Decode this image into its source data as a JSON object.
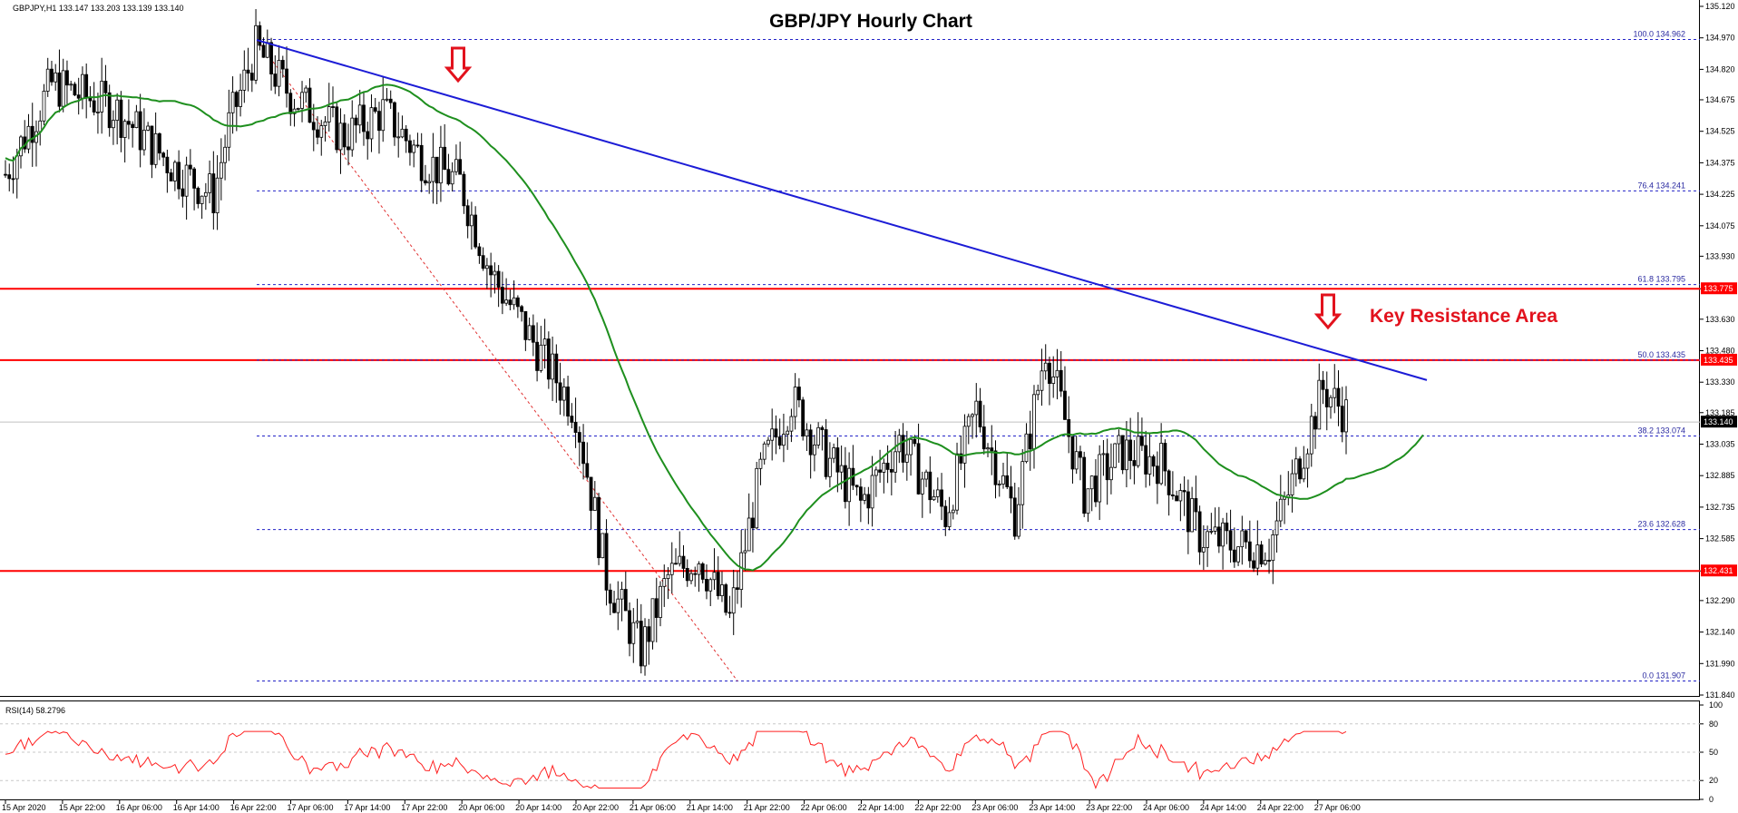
{
  "header": {
    "symbol_label": "GBPJPY,H1",
    "ohlc": "133.147 133.203 133.139 133.140"
  },
  "chart_data": {
    "type": "candlestick",
    "title": "GBP/JPY Hourly Chart",
    "annotation": "Key Resistance Area",
    "ylim": [
      131.84,
      135.12
    ],
    "y_ticks": [
      "135.120",
      "134.970",
      "134.820",
      "134.675",
      "134.525",
      "134.375",
      "134.225",
      "134.075",
      "133.930",
      "133.775",
      "133.630",
      "133.480",
      "133.330",
      "133.185",
      "133.035",
      "132.885",
      "132.735",
      "132.585",
      "132.431",
      "132.290",
      "132.140",
      "131.990",
      "131.840"
    ],
    "x_ticks": [
      "15 Apr 2020",
      "15 Apr 22:00",
      "16 Apr 06:00",
      "16 Apr 14:00",
      "16 Apr 22:00",
      "17 Apr 06:00",
      "17 Apr 14:00",
      "17 Apr 22:00",
      "20 Apr 06:00",
      "20 Apr 14:00",
      "20 Apr 22:00",
      "21 Apr 06:00",
      "21 Apr 14:00",
      "21 Apr 22:00",
      "22 Apr 06:00",
      "22 Apr 14:00",
      "22 Apr 22:00",
      "23 Apr 06:00",
      "23 Apr 14:00",
      "23 Apr 22:00",
      "24 Apr 06:00",
      "24 Apr 14:00",
      "24 Apr 22:00",
      "27 Apr 06:00"
    ],
    "current_price": "133.140",
    "support_resistance": [
      {
        "label": "133.775",
        "price": 133.775
      },
      {
        "label": "133.435",
        "price": 133.435
      },
      {
        "label": "132.431",
        "price": 132.431
      }
    ],
    "fibonacci": [
      {
        "label": "100.0 134.962",
        "price": 134.962
      },
      {
        "label": "76.4 134.241",
        "price": 134.241
      },
      {
        "label": "61.8 133.795",
        "price": 133.795
      },
      {
        "label": "50.0 133.435",
        "price": 133.435
      },
      {
        "label": "38.2 133.074",
        "price": 133.074
      },
      {
        "label": "23.6 132.628",
        "price": 132.628
      },
      {
        "label": "0.0 131.907",
        "price": 131.907
      }
    ],
    "trendline": {
      "start": {
        "x": "16 Apr 22:00",
        "y": 134.96
      },
      "end": {
        "x": "27 Apr 09:00",
        "y": 133.34
      }
    },
    "rsi": {
      "label": "RSI(14) 58.2796",
      "ylim": [
        0,
        100
      ],
      "y_ticks": [
        "100",
        "80",
        "50",
        "20",
        "0"
      ],
      "levels": [
        80,
        50,
        20
      ]
    },
    "colors": {
      "resistance": "#ff0000",
      "trendline": "#1c1cd6",
      "moving_average": "#1e8f1e",
      "fib": "#2323c8",
      "rsi": "#ff2020",
      "arrow": "#e2121d"
    }
  }
}
